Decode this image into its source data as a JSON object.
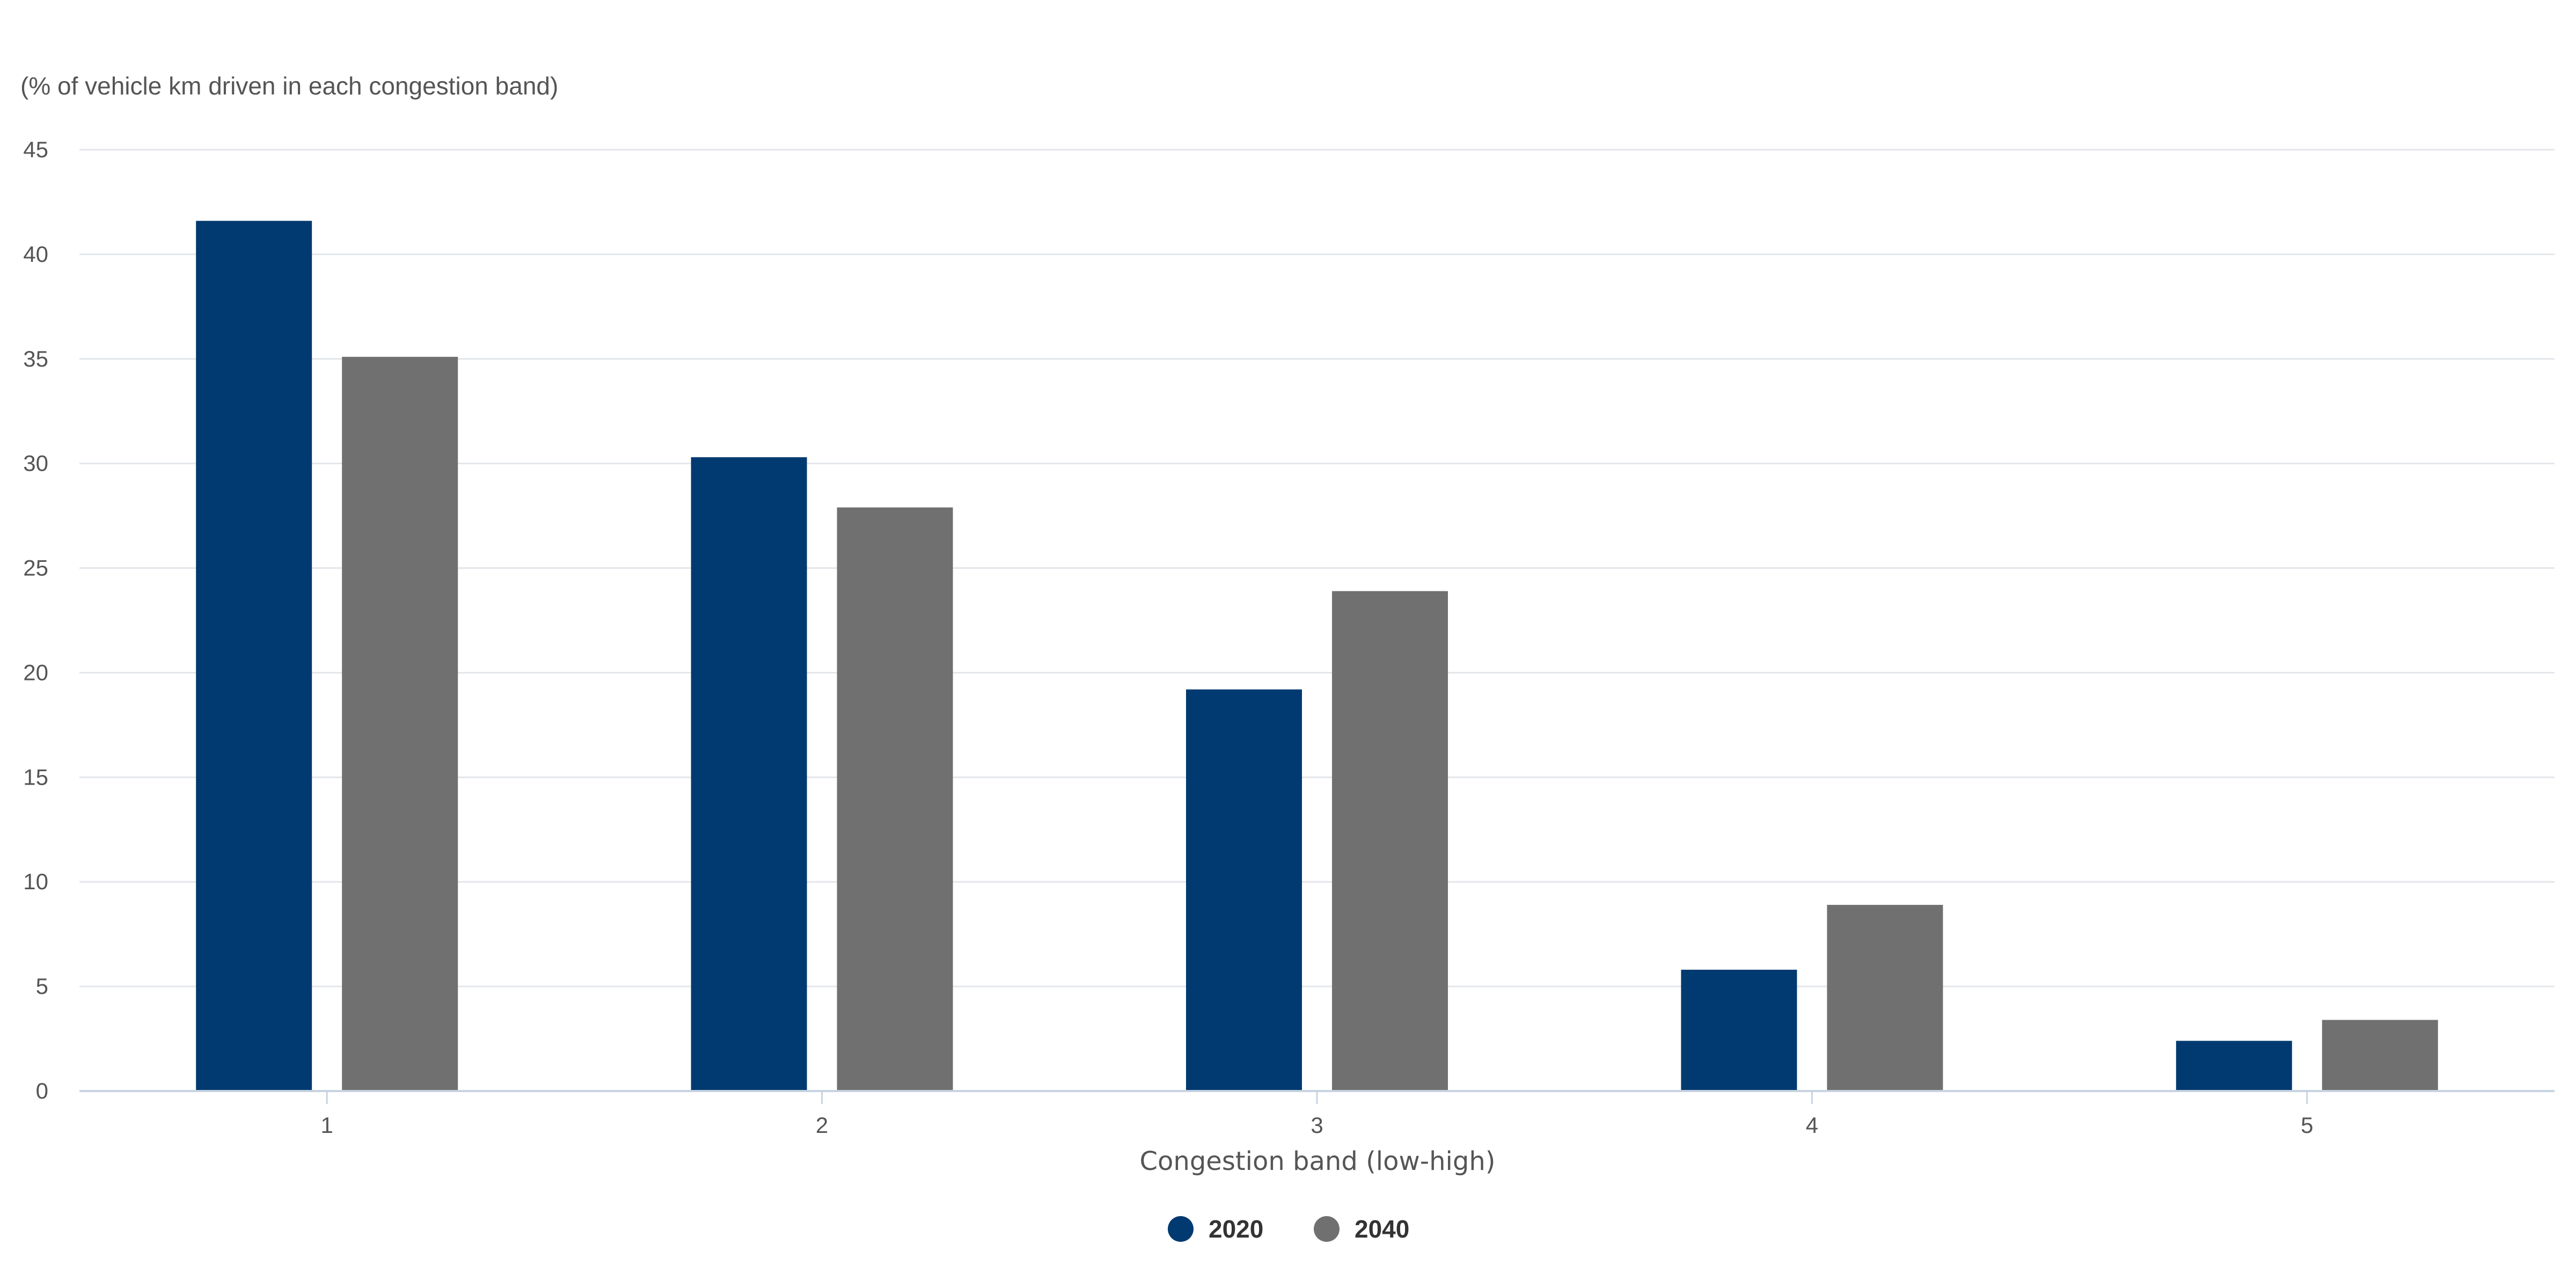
{
  "chart_data": {
    "type": "bar",
    "title": "",
    "unit_label": "(% of vehicle km driven in each congestion band)",
    "xlabel": "Congestion band (low-high)",
    "ylabel": "",
    "categories": [
      "1",
      "2",
      "3",
      "4",
      "5"
    ],
    "series": [
      {
        "name": "2020",
        "color": "#003a70",
        "values": [
          41.6,
          30.3,
          19.2,
          5.8,
          2.4
        ]
      },
      {
        "name": "2040",
        "color": "#707070",
        "values": [
          35.1,
          27.9,
          23.9,
          8.9,
          3.4
        ]
      }
    ],
    "ylim": [
      0,
      45
    ],
    "yticks": [
      "0",
      "5",
      "10",
      "15",
      "20",
      "25",
      "30",
      "35",
      "40",
      "45"
    ],
    "grid": true,
    "legend_position": "bottom-center"
  }
}
